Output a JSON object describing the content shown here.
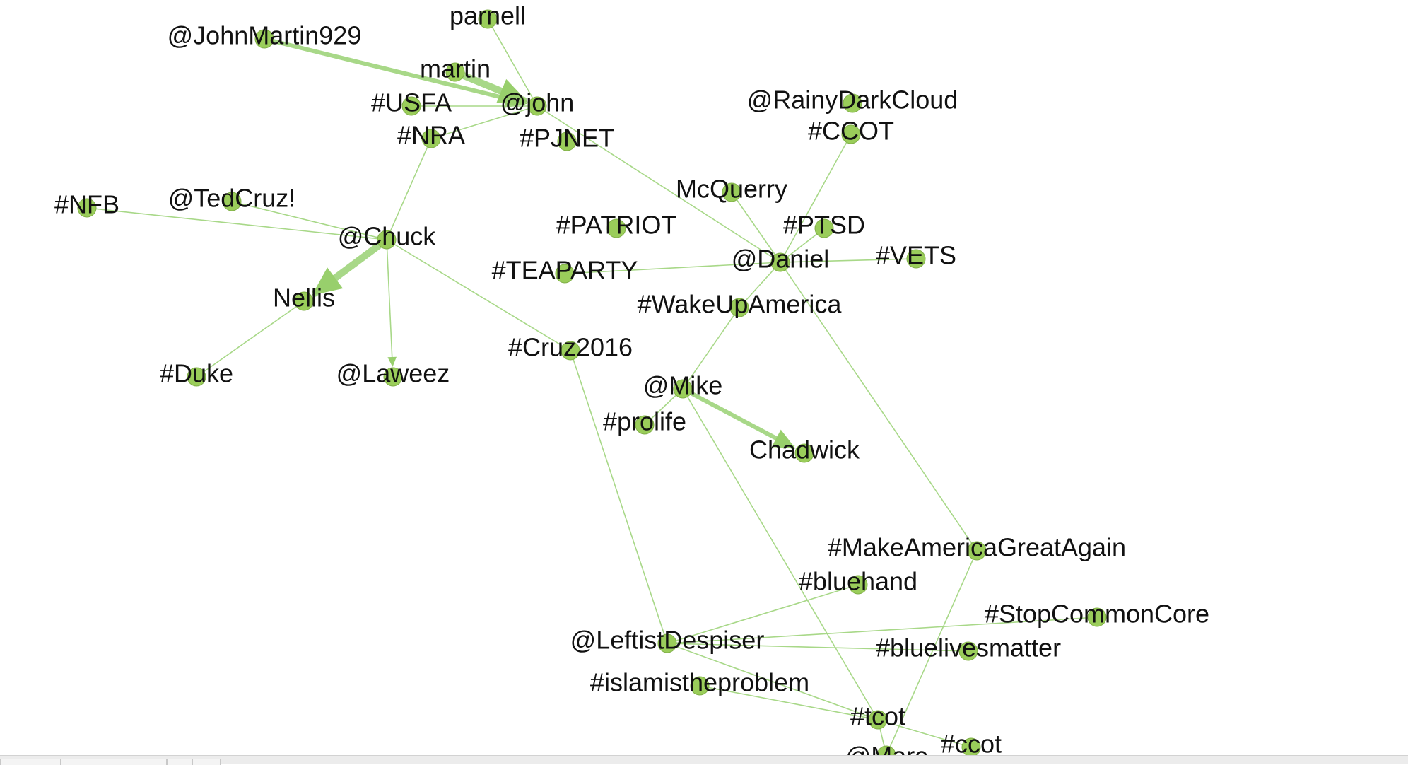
{
  "graph": {
    "node_color": "#9acd5a",
    "edge_color": "#a8d888",
    "label_color": "#111111",
    "nodes": [
      {
        "id": "parnell",
        "label": "parnell"
      },
      {
        "id": "johnmartin",
        "label": "@JohnMartin929"
      },
      {
        "id": "martin",
        "label": "martin"
      },
      {
        "id": "usfa",
        "label": "#USFA"
      },
      {
        "id": "john",
        "label": "@john"
      },
      {
        "id": "nra",
        "label": "#NRA"
      },
      {
        "id": "pjnet",
        "label": "#PJNET"
      },
      {
        "id": "rainy",
        "label": "@RainyDarkCloud"
      },
      {
        "id": "ccot_up",
        "label": "#CCOT"
      },
      {
        "id": "nfb",
        "label": "#NFB"
      },
      {
        "id": "tedcruz",
        "label": "@TedCruz!"
      },
      {
        "id": "mcquerry",
        "label": "McQuerry"
      },
      {
        "id": "chuck",
        "label": "@Chuck"
      },
      {
        "id": "patriot",
        "label": "#PATRIOT"
      },
      {
        "id": "ptsd",
        "label": "#PTSD"
      },
      {
        "id": "daniel",
        "label": "@Daniel"
      },
      {
        "id": "vets",
        "label": "#VETS"
      },
      {
        "id": "teaparty",
        "label": "#TEAPARTY"
      },
      {
        "id": "nellis",
        "label": "Nellis"
      },
      {
        "id": "wakeup",
        "label": "#WakeUpAmerica"
      },
      {
        "id": "cruz2016",
        "label": "#Cruz2016"
      },
      {
        "id": "duke",
        "label": "#Duke"
      },
      {
        "id": "laweez",
        "label": "@Laweez"
      },
      {
        "id": "mike",
        "label": "@Mike"
      },
      {
        "id": "prolife",
        "label": "#prolife"
      },
      {
        "id": "chadwick",
        "label": "Chadwick"
      },
      {
        "id": "maga",
        "label": "#MakeAmericaGreatAgain"
      },
      {
        "id": "bluehand",
        "label": "#bluehand"
      },
      {
        "id": "stopcc",
        "label": "#StopCommonCore"
      },
      {
        "id": "leftist",
        "label": "@LeftistDespiser"
      },
      {
        "id": "blm",
        "label": "#bluelivesmatter"
      },
      {
        "id": "islam",
        "label": "#islamistheproblem"
      },
      {
        "id": "tcot",
        "label": "#tcot"
      },
      {
        "id": "ccot",
        "label": "#ccot"
      },
      {
        "id": "marc",
        "label": "@Marc"
      }
    ],
    "edges": [
      {
        "from": "johnmartin",
        "to": "john",
        "weight": 3,
        "arrow": true
      },
      {
        "from": "martin",
        "to": "john",
        "weight": 5,
        "arrow": true
      },
      {
        "from": "parnell",
        "to": "john",
        "weight": 1
      },
      {
        "from": "usfa",
        "to": "john",
        "weight": 1
      },
      {
        "from": "nra",
        "to": "john",
        "weight": 1
      },
      {
        "from": "john",
        "to": "daniel",
        "weight": 1
      },
      {
        "from": "nra",
        "to": "chuck",
        "weight": 1
      },
      {
        "from": "nfb",
        "to": "chuck",
        "weight": 1
      },
      {
        "from": "tedcruz",
        "to": "chuck",
        "weight": 1
      },
      {
        "from": "chuck",
        "to": "nellis",
        "weight": 5,
        "arrow": true
      },
      {
        "from": "chuck",
        "to": "laweez",
        "weight": 1,
        "arrow": true
      },
      {
        "from": "chuck",
        "to": "cruz2016",
        "weight": 1
      },
      {
        "from": "nellis",
        "to": "duke",
        "weight": 1
      },
      {
        "from": "ccot_up",
        "to": "daniel",
        "weight": 1
      },
      {
        "from": "mcquerry",
        "to": "daniel",
        "weight": 1
      },
      {
        "from": "ptsd",
        "to": "daniel",
        "weight": 1
      },
      {
        "from": "vets",
        "to": "daniel",
        "weight": 1
      },
      {
        "from": "teaparty",
        "to": "daniel",
        "weight": 1
      },
      {
        "from": "daniel",
        "to": "wakeup",
        "weight": 1
      },
      {
        "from": "daniel",
        "to": "maga",
        "weight": 1
      },
      {
        "from": "wakeup",
        "to": "mike",
        "weight": 1
      },
      {
        "from": "mike",
        "to": "prolife",
        "weight": 1
      },
      {
        "from": "mike",
        "to": "chadwick",
        "weight": 3,
        "arrow": true
      },
      {
        "from": "mike",
        "to": "tcot",
        "weight": 1
      },
      {
        "from": "cruz2016",
        "to": "leftist",
        "weight": 1
      },
      {
        "from": "leftist",
        "to": "bluehand",
        "weight": 1
      },
      {
        "from": "leftist",
        "to": "stopcc",
        "weight": 1
      },
      {
        "from": "leftist",
        "to": "blm",
        "weight": 1
      },
      {
        "from": "leftist",
        "to": "tcot",
        "weight": 1
      },
      {
        "from": "islam",
        "to": "tcot",
        "weight": 1
      },
      {
        "from": "tcot",
        "to": "ccot",
        "weight": 1
      },
      {
        "from": "tcot",
        "to": "marc",
        "weight": 1
      },
      {
        "from": "maga",
        "to": "marc",
        "weight": 1
      }
    ]
  }
}
